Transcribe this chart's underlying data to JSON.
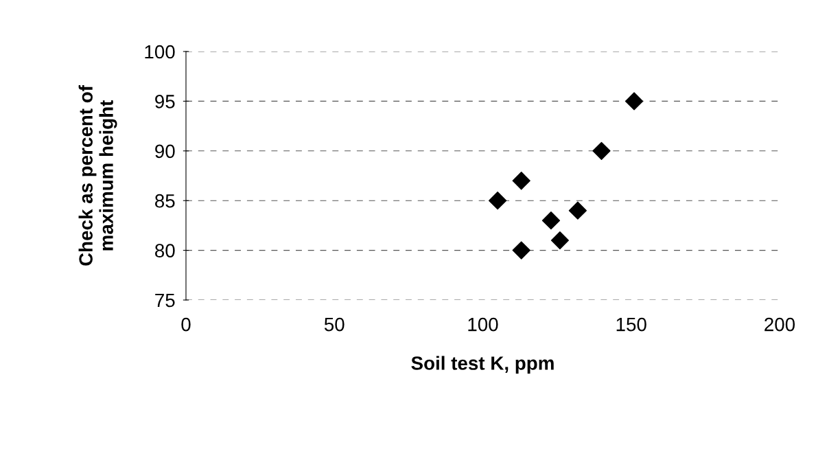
{
  "chart_data": {
    "type": "scatter",
    "xlabel": "Soil test K, ppm",
    "ylabel": "Check as percent of\nmaximum height",
    "x": [
      105,
      113,
      113,
      123,
      126,
      132,
      140,
      151
    ],
    "values": [
      85,
      87,
      80,
      83,
      81,
      84,
      90,
      95
    ],
    "color": "#000000",
    "marker": "diamond",
    "xlim": [
      0,
      200
    ],
    "xticks": [
      0,
      50,
      100,
      150,
      200
    ],
    "ylim": [
      75,
      100
    ],
    "yticks": [
      75,
      80,
      85,
      90,
      95,
      100
    ],
    "grid": "y"
  }
}
